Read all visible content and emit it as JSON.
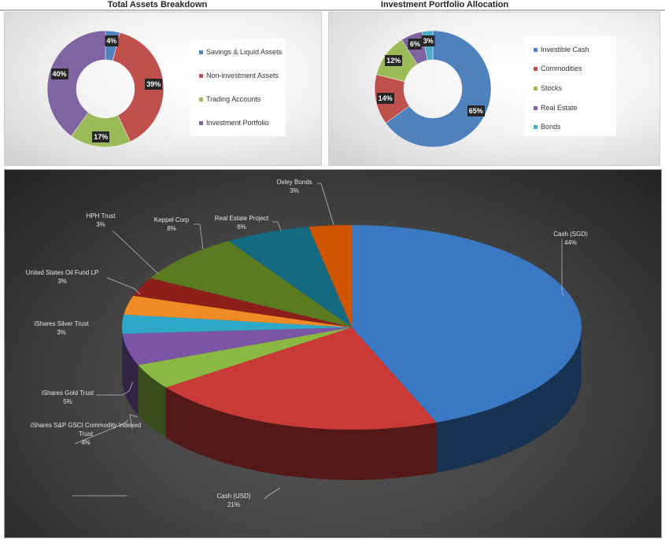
{
  "chart_data": [
    {
      "type": "pie",
      "variant": "doughnut",
      "title": "Total Assets Breakdown",
      "legend": "right",
      "categories": [
        "Savings & Liquid Assets",
        "Non-investment Assets",
        "Trading Accounts",
        "Investment Portfolio"
      ],
      "values": [
        4,
        39,
        17,
        40
      ],
      "labels": [
        "4%",
        "39%",
        "17%",
        "40%"
      ],
      "colors": [
        "#4f81bd",
        "#c0504d",
        "#9bbb59",
        "#8064a2"
      ]
    },
    {
      "type": "pie",
      "variant": "doughnut",
      "title": "Investment Portfolio Allocation",
      "legend": "right",
      "categories": [
        "Investible Cash",
        "Commodities",
        "Stocks",
        "Real Estate",
        "Bonds"
      ],
      "values": [
        65,
        14,
        12,
        6,
        3
      ],
      "labels": [
        "65%",
        "14%",
        "12%",
        "6%",
        "3%"
      ],
      "colors": [
        "#4f81bd",
        "#c0504d",
        "#9bbb59",
        "#8064a2",
        "#4bacc6"
      ]
    },
    {
      "type": "pie",
      "variant": "3d",
      "categories": [
        "Cash (SGD)",
        "Cash (USD)",
        "iShares S&P GSCI Commodity Indexed Trust",
        "iShares Gold Trust",
        "iShares Silver Trust",
        "United States Oil Fund LP",
        "HPH Trust",
        "Keppel Corp",
        "Real Estate Project",
        "Oxley Bonds"
      ],
      "values": [
        44,
        21,
        4,
        5,
        3,
        3,
        3,
        8,
        6,
        3
      ],
      "labels": [
        "44%",
        "21%",
        "4%",
        "5%",
        "3%",
        "3%",
        "3%",
        "8%",
        "6%",
        "3%"
      ],
      "colors": [
        "#3a78c4",
        "#c93a37",
        "#8ab843",
        "#7b55a6",
        "#2fa8c8",
        "#f08a24",
        "#8b1f1c",
        "#5a7a20",
        "#156a80",
        "#d05300"
      ]
    }
  ]
}
